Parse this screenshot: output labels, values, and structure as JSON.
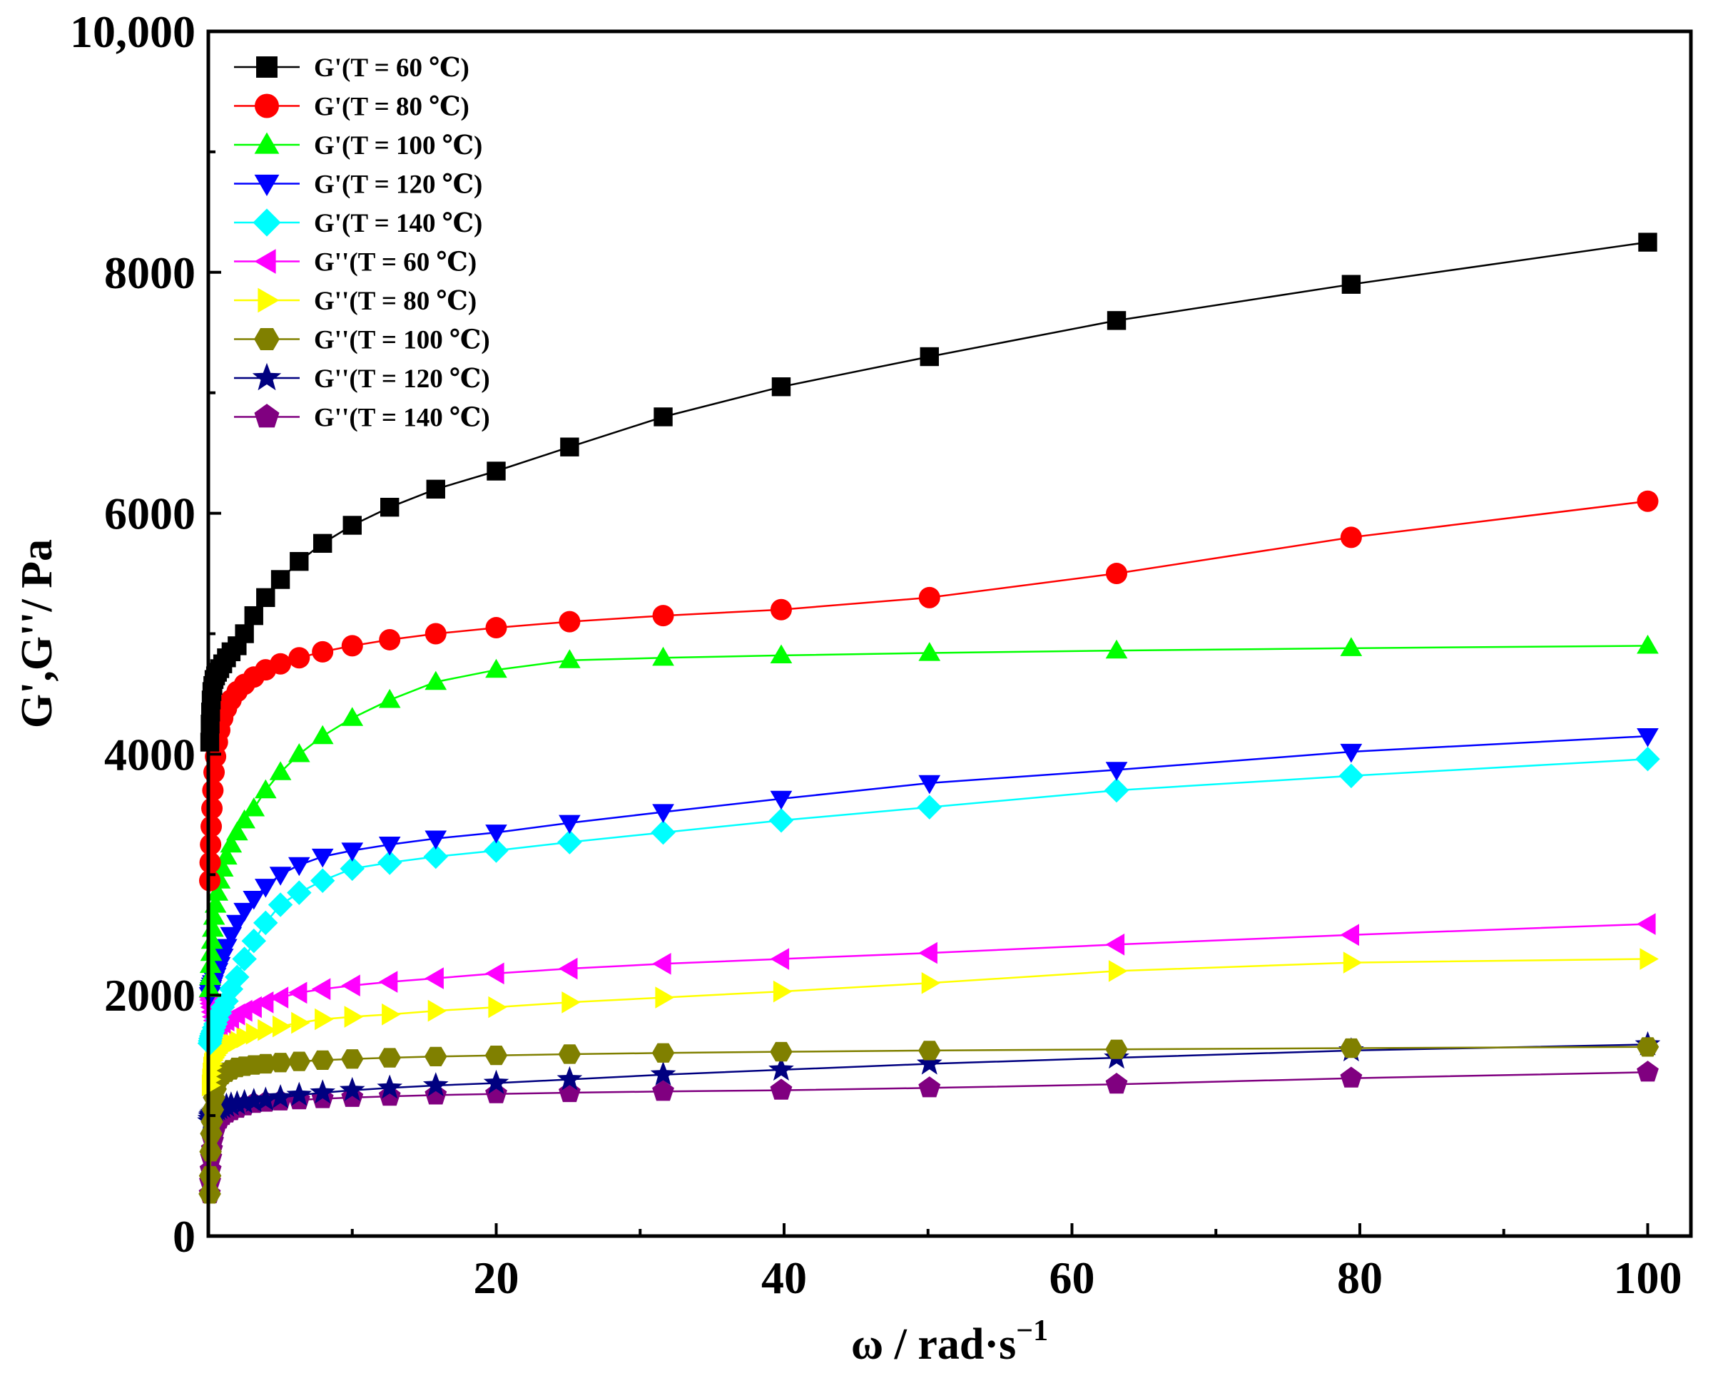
{
  "chart_data": {
    "type": "line",
    "title": "",
    "xlabel": "ω / rad·s",
    "xlabel_superscript": "−1",
    "ylabel": "G',G''/ Pa",
    "xlim": [
      0,
      103
    ],
    "ylim": [
      0,
      10000
    ],
    "x_ticks": [
      20,
      40,
      60,
      80,
      100
    ],
    "x_tick_labels": [
      "20",
      "40",
      "60",
      "80",
      "100"
    ],
    "y_ticks": [
      0,
      2000,
      4000,
      6000,
      8000,
      10000
    ],
    "y_tick_labels": [
      "0",
      "2000",
      "4000",
      "6000",
      "8000",
      "10,000"
    ],
    "grid": false,
    "legend_position": "top-left",
    "x": [
      0.1,
      0.126,
      0.158,
      0.2,
      0.251,
      0.316,
      0.398,
      0.501,
      0.631,
      0.794,
      1.0,
      1.26,
      1.58,
      2.0,
      2.51,
      3.16,
      3.98,
      5.01,
      6.31,
      7.94,
      10.0,
      12.6,
      15.8,
      20.0,
      25.1,
      31.6,
      39.8,
      50.1,
      63.1,
      79.4,
      100
    ],
    "series": [
      {
        "name": "G'(T = 60 ℃)",
        "marker": "square",
        "color": "#000000",
        "values": [
          4100,
          4250,
          4350,
          4450,
          4520,
          4570,
          4620,
          4650,
          4680,
          4710,
          4750,
          4800,
          4850,
          4900,
          5000,
          5150,
          5300,
          5450,
          5600,
          5750,
          5900,
          6050,
          6200,
          6350,
          6550,
          6800,
          7050,
          7300,
          7600,
          7900,
          8250
        ]
      },
      {
        "name": "G'(T = 80 ℃)",
        "marker": "circle",
        "color": "#ff0000",
        "values": [
          2950,
          3100,
          3250,
          3400,
          3550,
          3700,
          3850,
          3980,
          4100,
          4200,
          4300,
          4380,
          4450,
          4520,
          4580,
          4640,
          4700,
          4750,
          4800,
          4850,
          4900,
          4950,
          5000,
          5050,
          5100,
          5150,
          5200,
          5300,
          5500,
          5800,
          6100
        ]
      },
      {
        "name": "G'(T = 100 ℃)",
        "marker": "triangle-up",
        "color": "#00ff00",
        "values": [
          2050,
          2150,
          2250,
          2350,
          2450,
          2550,
          2650,
          2750,
          2850,
          2950,
          3050,
          3150,
          3250,
          3350,
          3450,
          3550,
          3700,
          3850,
          4000,
          4150,
          4300,
          4450,
          4600,
          4700,
          4780,
          4800,
          4820,
          4840,
          4860,
          4880,
          4900
        ]
      },
      {
        "name": "G'(T = 120 ℃)",
        "marker": "triangle-down",
        "color": "#0000ff",
        "values": [
          2000,
          2020,
          2040,
          2060,
          2080,
          2100,
          2130,
          2160,
          2200,
          2250,
          2320,
          2400,
          2500,
          2600,
          2700,
          2800,
          2900,
          3000,
          3080,
          3150,
          3200,
          3250,
          3300,
          3350,
          3430,
          3520,
          3630,
          3760,
          3870,
          4020,
          4150
        ]
      },
      {
        "name": "G'(T = 140 ℃)",
        "marker": "diamond",
        "color": "#00ffff",
        "values": [
          1600,
          1620,
          1640,
          1660,
          1680,
          1700,
          1730,
          1760,
          1800,
          1850,
          1900,
          1950,
          2050,
          2150,
          2300,
          2450,
          2600,
          2750,
          2850,
          2950,
          3050,
          3100,
          3150,
          3200,
          3270,
          3350,
          3450,
          3560,
          3700,
          3820,
          3960
        ]
      },
      {
        "name": "G''(T = 60 ℃)",
        "marker": "triangle-left",
        "color": "#ff00ff",
        "values": [
          1980,
          1960,
          1930,
          1900,
          1860,
          1820,
          1790,
          1770,
          1760,
          1760,
          1770,
          1790,
          1810,
          1840,
          1870,
          1900,
          1940,
          1980,
          2020,
          2050,
          2080,
          2110,
          2140,
          2180,
          2220,
          2260,
          2300,
          2350,
          2420,
          2500,
          2590
        ]
      },
      {
        "name": "G''(T = 80 ℃)",
        "marker": "triangle-right",
        "color": "#ffff00",
        "values": [
          1250,
          1300,
          1350,
          1400,
          1430,
          1460,
          1480,
          1500,
          1520,
          1540,
          1560,
          1580,
          1600,
          1620,
          1650,
          1680,
          1710,
          1740,
          1770,
          1800,
          1820,
          1840,
          1870,
          1900,
          1940,
          1980,
          2030,
          2100,
          2200,
          2270,
          2300
        ]
      },
      {
        "name": "G''(T = 100 ℃)",
        "marker": "hexagon",
        "color": "#808000",
        "values": [
          350,
          500,
          700,
          850,
          950,
          1050,
          1150,
          1220,
          1280,
          1320,
          1340,
          1360,
          1380,
          1400,
          1410,
          1420,
          1430,
          1440,
          1450,
          1460,
          1470,
          1480,
          1490,
          1500,
          1510,
          1520,
          1530,
          1540,
          1550,
          1560,
          1570
        ]
      },
      {
        "name": "G''(T = 120 ℃)",
        "marker": "star",
        "color": "#000080",
        "values": [
          950,
          970,
          990,
          1000,
          1010,
          1020,
          1030,
          1040,
          1050,
          1060,
          1070,
          1080,
          1090,
          1100,
          1110,
          1120,
          1130,
          1150,
          1170,
          1190,
          1210,
          1230,
          1250,
          1270,
          1300,
          1340,
          1380,
          1430,
          1480,
          1540,
          1590
        ]
      },
      {
        "name": "G''(T = 140 ℃)",
        "marker": "pentagon",
        "color": "#800080",
        "values": [
          350,
          450,
          550,
          650,
          720,
          790,
          850,
          900,
          940,
          970,
          1000,
          1020,
          1040,
          1060,
          1080,
          1100,
          1110,
          1120,
          1130,
          1140,
          1150,
          1160,
          1170,
          1180,
          1190,
          1200,
          1210,
          1230,
          1260,
          1310,
          1360
        ]
      }
    ]
  }
}
